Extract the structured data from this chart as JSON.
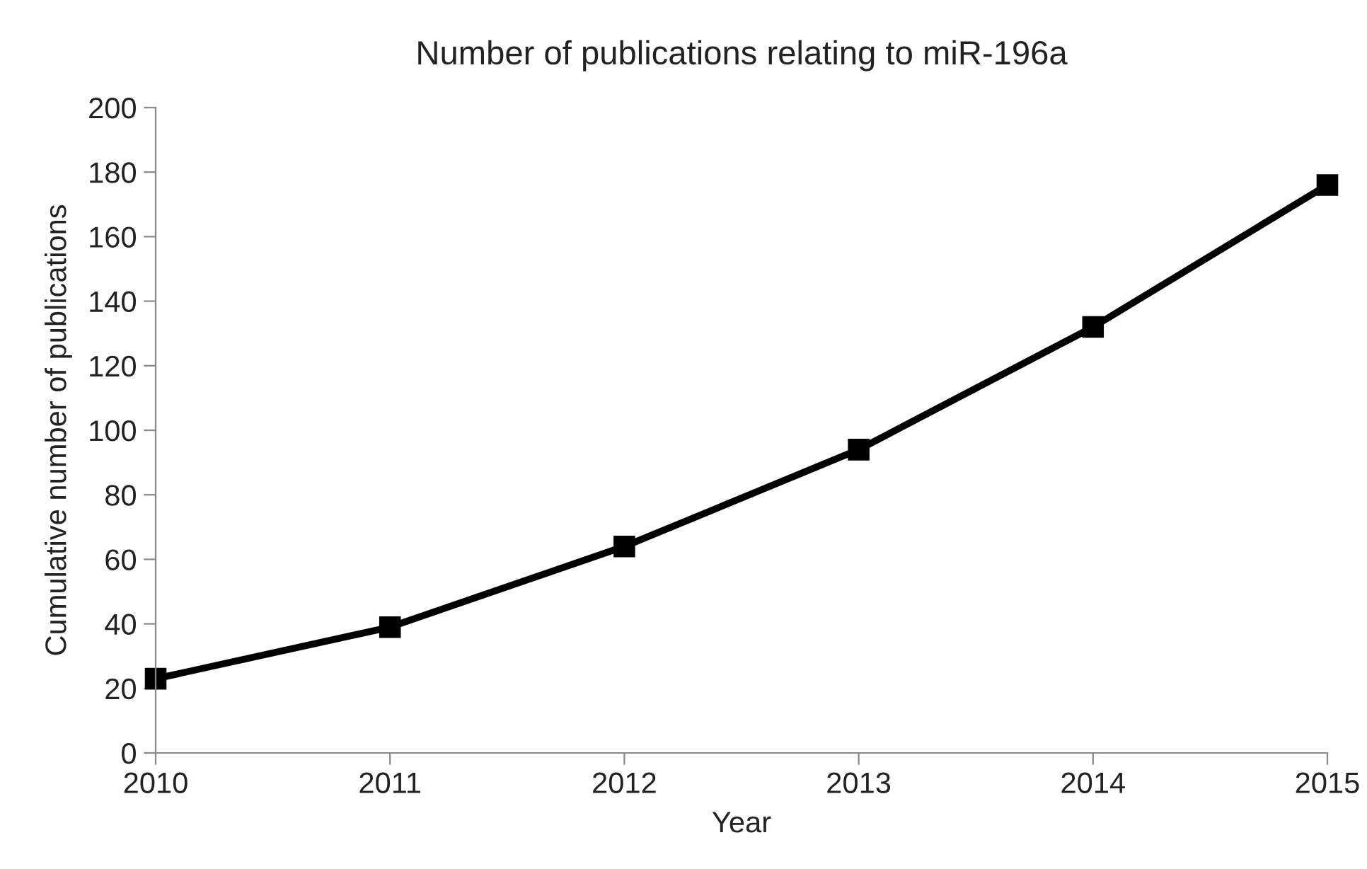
{
  "chart_data": {
    "type": "line",
    "title": "Number of publications relating to miR-196a",
    "xlabel": "Year",
    "ylabel": "Cumulative number of publications",
    "x": [
      2010,
      2011,
      2012,
      2013,
      2014,
      2015
    ],
    "series": [
      {
        "color": "#000000",
        "values": [
          23,
          39,
          64,
          94,
          132,
          176
        ]
      }
    ],
    "xlim": [
      2010,
      2015
    ],
    "xticks": [
      2010,
      2011,
      2012,
      2013,
      2014,
      2015
    ],
    "ylim": [
      0,
      200
    ],
    "yticks": [
      0,
      20,
      40,
      60,
      80,
      100,
      120,
      140,
      160,
      180,
      200
    ],
    "marker": "square",
    "line_style": "solid",
    "grid": false,
    "legend": false
  }
}
